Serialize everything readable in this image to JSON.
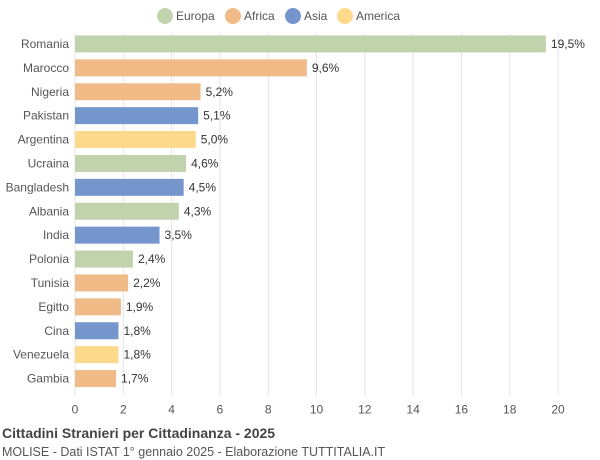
{
  "chart_data": {
    "type": "bar",
    "orientation": "horizontal",
    "title": "Cittadini Stranieri per Cittadinanza - 2025",
    "subtitle": "MOLISE - Dati ISTAT 1° gennaio 2025 - Elaborazione TUTTITALIA.IT",
    "legend": {
      "placement": "top",
      "items": [
        {
          "name": "Europa",
          "color": "#c1d3ad"
        },
        {
          "name": "Africa",
          "color": "#f0bb87"
        },
        {
          "name": "Asia",
          "color": "#7596cc"
        },
        {
          "name": "America",
          "color": "#fdd98b"
        }
      ]
    },
    "categories": [
      "Romania",
      "Marocco",
      "Nigeria",
      "Pakistan",
      "Argentina",
      "Ucraina",
      "Bangladesh",
      "Albania",
      "India",
      "Polonia",
      "Tunisia",
      "Egitto",
      "Cina",
      "Venezuela",
      "Gambia"
    ],
    "values": [
      19.5,
      9.6,
      5.2,
      5.1,
      5.0,
      4.6,
      4.5,
      4.3,
      3.5,
      2.4,
      2.2,
      1.9,
      1.8,
      1.8,
      1.7
    ],
    "labels": [
      "19,5%",
      "9,6%",
      "5,2%",
      "5,1%",
      "5,0%",
      "4,6%",
      "4,5%",
      "4,3%",
      "3,5%",
      "2,4%",
      "2,2%",
      "1,9%",
      "1,8%",
      "1,8%",
      "1,7%"
    ],
    "groups": [
      "Europa",
      "Africa",
      "Africa",
      "Asia",
      "America",
      "Europa",
      "Asia",
      "Europa",
      "Asia",
      "Europa",
      "Africa",
      "Africa",
      "Asia",
      "America",
      "Africa"
    ],
    "xlim": [
      0,
      20
    ],
    "xticks": [
      "0",
      "2",
      "4",
      "6",
      "8",
      "10",
      "12",
      "14",
      "16",
      "18",
      "20"
    ],
    "grid": true
  }
}
